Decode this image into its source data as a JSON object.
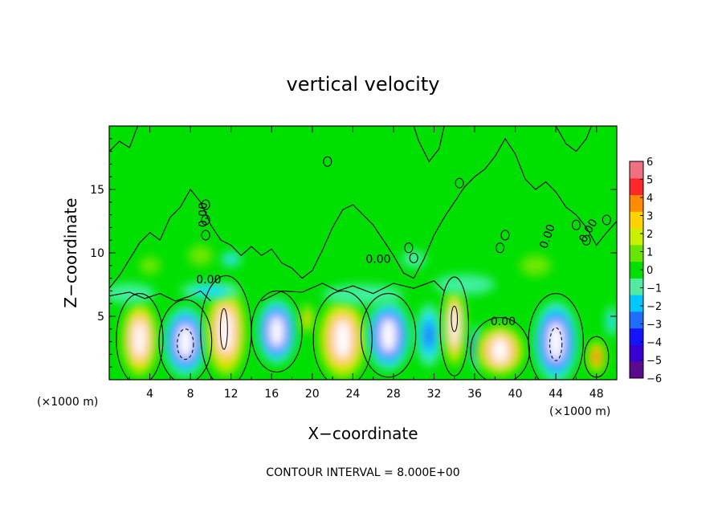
{
  "chart_data": {
    "type": "heatmap",
    "title": "vertical velocity",
    "xlabel": "X−coordinate",
    "ylabel": "Z−coordinate",
    "x_unit_left": "(×1000 m)",
    "x_unit_right": "(×1000 m)",
    "footer": "CONTOUR INTERVAL = 8.000E+00",
    "xlim": [
      0,
      50
    ],
    "ylim": [
      0,
      20
    ],
    "x_ticks": [
      "4",
      "8",
      "12",
      "16",
      "20",
      "24",
      "28",
      "32",
      "36",
      "40",
      "44",
      "48"
    ],
    "y_ticks": [
      "5",
      "10",
      "15"
    ],
    "contour_labels": [
      "0.00",
      "0.00",
      "0.00",
      "0.00",
      "0.00",
      "0.00"
    ],
    "colorbar": {
      "min": -6,
      "max": 6,
      "tick_labels": [
        "6",
        "5",
        "4",
        "3",
        "2",
        "1",
        "0",
        "−1",
        "−2",
        "−3",
        "−4",
        "−5",
        "−6"
      ],
      "colors": [
        "#5a0a8c",
        "#3a00d0",
        "#1414ff",
        "#1e6eff",
        "#00c8ff",
        "#50eaa0",
        "#00e000",
        "#66e600",
        "#c8f000",
        "#ffd200",
        "#ff8c00",
        "#ff2828",
        "#f07080",
        "#ffffff"
      ]
    },
    "cells": [
      {
        "x": 3,
        "z": 3.2,
        "w": -0.0,
        "value": 6,
        "rx": 1.8,
        "rz": 3.0
      },
      {
        "x": 7.5,
        "z": 3.0,
        "value": -6,
        "rx": 2.2,
        "rz": 2.8
      },
      {
        "x": 11.5,
        "z": 3.8,
        "value": 6,
        "rx": 2.0,
        "rz": 3.6
      },
      {
        "x": 16.5,
        "z": 3.8,
        "value": -6,
        "rx": 2.0,
        "rz": 2.6
      },
      {
        "x": 19.5,
        "z": 4.8,
        "value": 3,
        "rx": 0.6,
        "rz": 1.2
      },
      {
        "x": 23,
        "z": 3.2,
        "value": 6,
        "rx": 2.4,
        "rz": 3.2
      },
      {
        "x": 27.5,
        "z": 3.5,
        "value": -6,
        "rx": 2.2,
        "rz": 2.8
      },
      {
        "x": 31.5,
        "z": 3.5,
        "value": -3,
        "rx": 1.3,
        "rz": 2.5
      },
      {
        "x": 34,
        "z": 4.2,
        "value": 6,
        "rx": 1.1,
        "rz": 3.2
      },
      {
        "x": 36.2,
        "z": 2.5,
        "value": -4,
        "rx": 0.6,
        "rz": 1.8
      },
      {
        "x": 38.5,
        "z": 2.3,
        "value": 6,
        "rx": 2.4,
        "rz": 2.0
      },
      {
        "x": 44,
        "z": 3.0,
        "value": -6,
        "rx": 2.2,
        "rz": 3.2
      },
      {
        "x": 48,
        "z": 1.8,
        "value": 5,
        "rx": 0.9,
        "rz": 1.3
      },
      {
        "x": 49.5,
        "z": 4.6,
        "value": -2,
        "rx": 0.6,
        "rz": 1.2
      },
      {
        "x": 2,
        "z": 6.8,
        "value": -1,
        "rx": 2.5,
        "rz": 0.8
      },
      {
        "x": 10,
        "z": 7.0,
        "value": -2,
        "rx": 3.0,
        "rz": 0.7
      },
      {
        "x": 25,
        "z": 6.7,
        "value": -1,
        "rx": 4.0,
        "rz": 0.8
      },
      {
        "x": 35,
        "z": 7.5,
        "value": -1,
        "rx": 3.0,
        "rz": 0.8
      },
      {
        "x": 12,
        "z": 9.5,
        "value": -2,
        "rx": 1.0,
        "rz": 0.6
      },
      {
        "x": 9,
        "z": 9.8,
        "value": 1,
        "rx": 1.2,
        "rz": 0.8
      },
      {
        "x": 4,
        "z": 9.0,
        "value": 1,
        "rx": 1.0,
        "rz": 0.7
      },
      {
        "x": 30,
        "z": 9.5,
        "value": -1,
        "rx": 1.2,
        "rz": 0.7
      },
      {
        "x": 42,
        "z": 9.0,
        "value": 1,
        "rx": 1.5,
        "rz": 0.8
      }
    ]
  }
}
